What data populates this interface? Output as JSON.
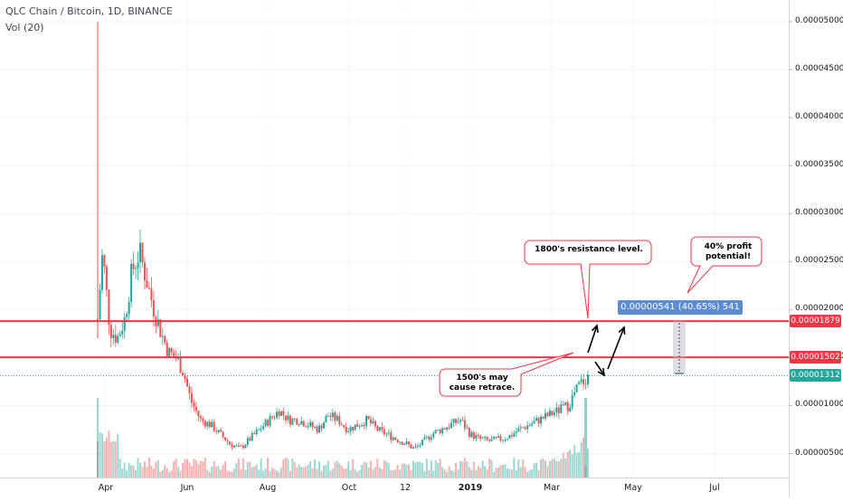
{
  "legend": {
    "title": "QLC Chain / Bitcoin, 1D, BINANCE",
    "volume_label": "Vol (20)"
  },
  "price_tags": {
    "resistance_1800": {
      "text": "0.00001879",
      "color": "#f23645"
    },
    "resistance_1500": {
      "text": "0.00001502",
      "color": "#f23645"
    },
    "last_price": {
      "text": "0.00001312",
      "color": "#26a69a"
    }
  },
  "annotations": {
    "resistance_note": "1800's resistance level.",
    "profit_note": "40% profit potential!",
    "retrace_note": "1500's may cause retrace.",
    "measure_label": "0.00000541 (40.65%) 541"
  },
  "chart_data": {
    "type": "candlestick",
    "title": "QLC Chain / Bitcoin, 1D, BINANCE",
    "y_ticks": [
      "0.00005000",
      "0.00004500",
      "0.00004000",
      "0.00003500",
      "0.00003000",
      "0.00002500",
      "0.00002000",
      "0.00001500",
      "0.00001000",
      "0.00000500"
    ],
    "y_tick_values": [
      5e-05,
      4.5e-05,
      4e-05,
      3.5e-05,
      3e-05,
      2.5e-05,
      2e-05,
      1.5e-05,
      1e-05,
      5e-06
    ],
    "x_ticks": [
      "Apr",
      "Jun",
      "Aug",
      "Oct",
      "12",
      "2019",
      "Mar",
      "May",
      "Jul"
    ],
    "ylim": [
      3e-06,
      5.2e-05
    ],
    "horizontal_levels": [
      {
        "name": "1800's resistance level",
        "value": 1.879e-05,
        "color": "#f23645"
      },
      {
        "name": "1500's level",
        "value": 1.502e-05,
        "color": "#f23645"
      },
      {
        "name": "last price",
        "value": 1.312e-05,
        "color": "#26a69a"
      }
    ],
    "up_color": "#26a69a",
    "down_color": "#ef5350",
    "close_path": [
      {
        "t": 0.0,
        "v": 1.9e-05
      },
      {
        "t": 0.01,
        "v": 2.6e-05
      },
      {
        "t": 0.025,
        "v": 1.8e-05
      },
      {
        "t": 0.04,
        "v": 1.7e-05
      },
      {
        "t": 0.055,
        "v": 1.9e-05
      },
      {
        "t": 0.07,
        "v": 2.4e-05
      },
      {
        "t": 0.085,
        "v": 2.6e-05
      },
      {
        "t": 0.1,
        "v": 2.3e-05
      },
      {
        "t": 0.115,
        "v": 2e-05
      },
      {
        "t": 0.13,
        "v": 1.75e-05
      },
      {
        "t": 0.145,
        "v": 1.55e-05
      },
      {
        "t": 0.16,
        "v": 1.5e-05
      },
      {
        "t": 0.175,
        "v": 1.35e-05
      },
      {
        "t": 0.19,
        "v": 1.05e-05
      },
      {
        "t": 0.21,
        "v": 8.5e-06
      },
      {
        "t": 0.23,
        "v": 8e-06
      },
      {
        "t": 0.25,
        "v": 7e-06
      },
      {
        "t": 0.27,
        "v": 6e-06
      },
      {
        "t": 0.29,
        "v": 5.5e-06
      },
      {
        "t": 0.31,
        "v": 6.5e-06
      },
      {
        "t": 0.33,
        "v": 7.5e-06
      },
      {
        "t": 0.35,
        "v": 8.5e-06
      },
      {
        "t": 0.37,
        "v": 9.5e-06
      },
      {
        "t": 0.39,
        "v": 8.5e-06
      },
      {
        "t": 0.41,
        "v": 8.5e-06
      },
      {
        "t": 0.43,
        "v": 8e-06
      },
      {
        "t": 0.45,
        "v": 7.5e-06
      },
      {
        "t": 0.47,
        "v": 9e-06
      },
      {
        "t": 0.49,
        "v": 8.5e-06
      },
      {
        "t": 0.51,
        "v": 7.5e-06
      },
      {
        "t": 0.53,
        "v": 8e-06
      },
      {
        "t": 0.55,
        "v": 8.5e-06
      },
      {
        "t": 0.57,
        "v": 7.5e-06
      },
      {
        "t": 0.59,
        "v": 7e-06
      },
      {
        "t": 0.61,
        "v": 6.5e-06
      },
      {
        "t": 0.63,
        "v": 6e-06
      },
      {
        "t": 0.645,
        "v": 5.5e-06
      },
      {
        "t": 0.66,
        "v": 6e-06
      },
      {
        "t": 0.68,
        "v": 7e-06
      },
      {
        "t": 0.7,
        "v": 7.5e-06
      },
      {
        "t": 0.72,
        "v": 8e-06
      },
      {
        "t": 0.74,
        "v": 8.5e-06
      },
      {
        "t": 0.76,
        "v": 7e-06
      },
      {
        "t": 0.78,
        "v": 6.5e-06
      },
      {
        "t": 0.8,
        "v": 6.3e-06
      },
      {
        "t": 0.82,
        "v": 6.5e-06
      },
      {
        "t": 0.84,
        "v": 6.8e-06
      },
      {
        "t": 0.86,
        "v": 7.5e-06
      },
      {
        "t": 0.88,
        "v": 8e-06
      },
      {
        "t": 0.9,
        "v": 8.5e-06
      },
      {
        "t": 0.92,
        "v": 9e-06
      },
      {
        "t": 0.94,
        "v": 9.5e-06
      },
      {
        "t": 0.96,
        "v": 1e-05
      },
      {
        "t": 0.98,
        "v": 1.2e-05
      },
      {
        "t": 1.0,
        "v": 1.31e-05
      }
    ],
    "first_spike_high": 5e-05
  }
}
